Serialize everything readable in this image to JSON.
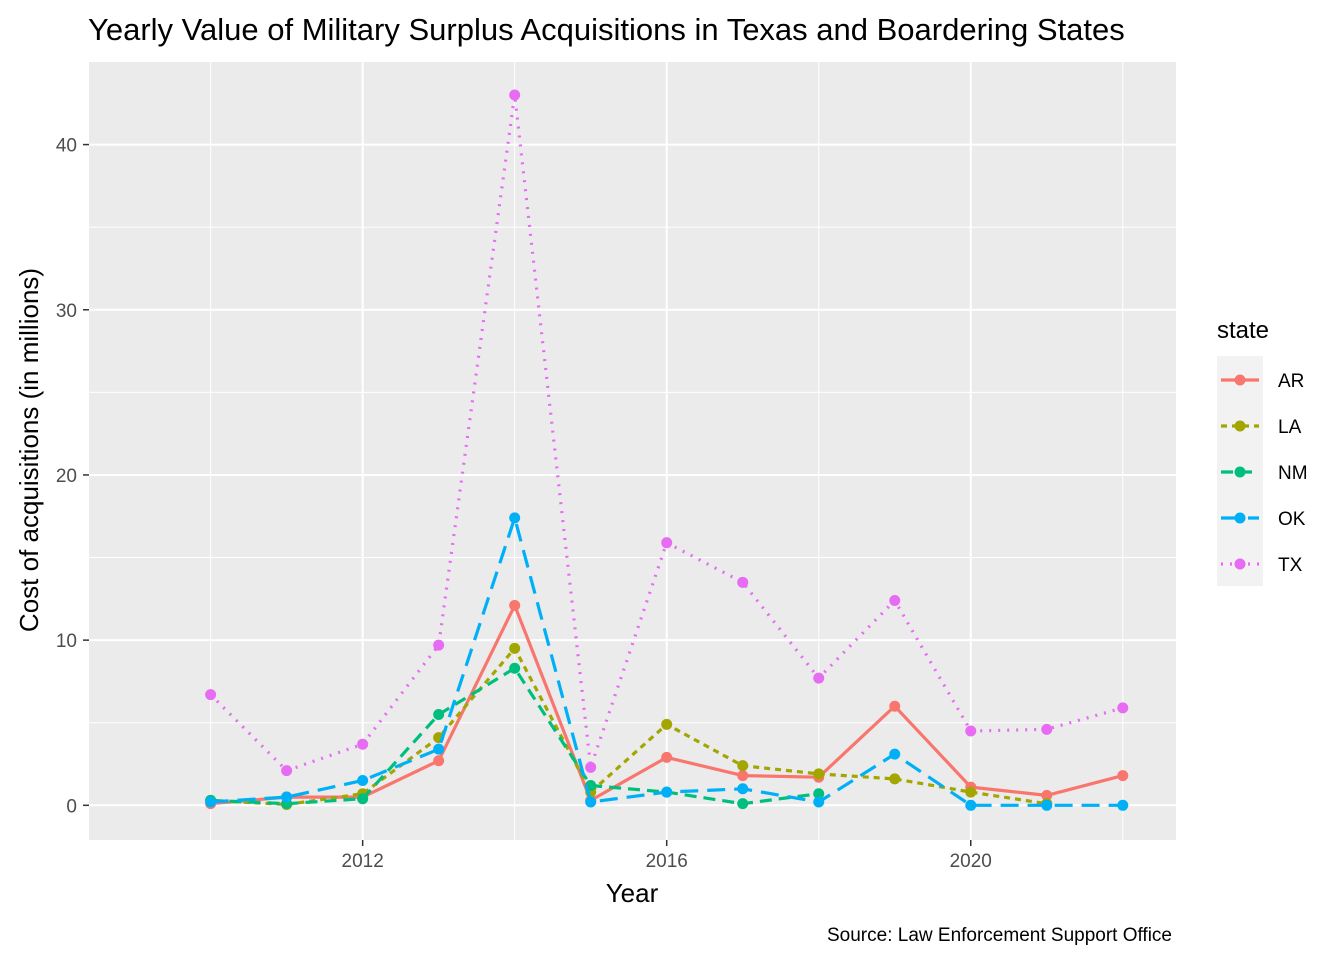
{
  "chart_data": {
    "type": "line",
    "title": "Yearly Value of Military Surplus Acquisitions in Texas and Boardering States",
    "xlabel": "Year",
    "ylabel": "Cost of acquisitions (in millions)",
    "caption": "Source: Law Enforcement Support Office",
    "legend_title": "state",
    "legend_position": "right",
    "grid": true,
    "xlim": [
      2008.4,
      2022.7
    ],
    "ylim": [
      -2.1,
      45.0
    ],
    "x_ticks": [
      2012,
      2016,
      2020
    ],
    "x_tick_labels": [
      "2012",
      "2016",
      "2020"
    ],
    "y_ticks": [
      0,
      10,
      20,
      30,
      40
    ],
    "y_tick_labels": [
      "0",
      "10",
      "20",
      "30",
      "40"
    ],
    "series": [
      {
        "name": "AR",
        "color": "#F8766D",
        "linetype": "solid",
        "points": [
          [
            2010,
            0.1
          ],
          [
            2011,
            0.5
          ],
          [
            2012,
            0.5
          ],
          [
            2013,
            2.7
          ],
          [
            2014,
            12.1
          ],
          [
            2015,
            0.3
          ],
          [
            2016,
            2.9
          ],
          [
            2017,
            1.8
          ],
          [
            2018,
            1.7
          ],
          [
            2019,
            6.0
          ],
          [
            2020,
            1.1
          ],
          [
            2021,
            0.6
          ],
          [
            2022,
            1.8
          ]
        ]
      },
      {
        "name": "LA",
        "color": "#A3A500",
        "linetype": "dotted-dash",
        "points": [
          [
            2010,
            0.3
          ],
          [
            2011,
            0.05
          ],
          [
            2012,
            0.7
          ],
          [
            2013,
            4.1
          ],
          [
            2014,
            9.5
          ],
          [
            2015,
            0.8
          ],
          [
            2016,
            4.9
          ],
          [
            2017,
            2.4
          ],
          [
            2018,
            1.9
          ],
          [
            2019,
            1.6
          ],
          [
            2020,
            0.8
          ],
          [
            2021,
            0.1
          ]
        ]
      },
      {
        "name": "NM",
        "color": "#00BF7D",
        "linetype": "dashed",
        "points": [
          [
            2010,
            0.3
          ],
          [
            2011,
            0.1
          ],
          [
            2012,
            0.4
          ],
          [
            2013,
            5.5
          ],
          [
            2014,
            8.3
          ],
          [
            2015,
            1.2
          ],
          [
            2016,
            0.8
          ],
          [
            2017,
            0.1
          ],
          [
            2018,
            0.7
          ]
        ]
      },
      {
        "name": "OK",
        "color": "#00B0F6",
        "linetype": "longdash",
        "points": [
          [
            2010,
            0.2
          ],
          [
            2011,
            0.5
          ],
          [
            2012,
            1.5
          ],
          [
            2013,
            3.4
          ],
          [
            2014,
            17.4
          ],
          [
            2015,
            0.2
          ],
          [
            2016,
            0.8
          ],
          [
            2017,
            1.0
          ],
          [
            2018,
            0.2
          ],
          [
            2019,
            3.1
          ],
          [
            2020,
            0.0
          ],
          [
            2021,
            0.0
          ],
          [
            2022,
            0.0
          ]
        ]
      },
      {
        "name": "TX",
        "color": "#E76BF3",
        "linetype": "dotted",
        "points": [
          [
            2010,
            6.7
          ],
          [
            2011,
            2.1
          ],
          [
            2012,
            3.7
          ],
          [
            2013,
            9.7
          ],
          [
            2014,
            43.0
          ],
          [
            2015,
            2.3
          ],
          [
            2016,
            15.9
          ],
          [
            2017,
            13.5
          ],
          [
            2018,
            7.7
          ],
          [
            2019,
            12.4
          ],
          [
            2020,
            4.5
          ],
          [
            2021,
            4.6
          ],
          [
            2022,
            5.9
          ]
        ]
      }
    ]
  }
}
